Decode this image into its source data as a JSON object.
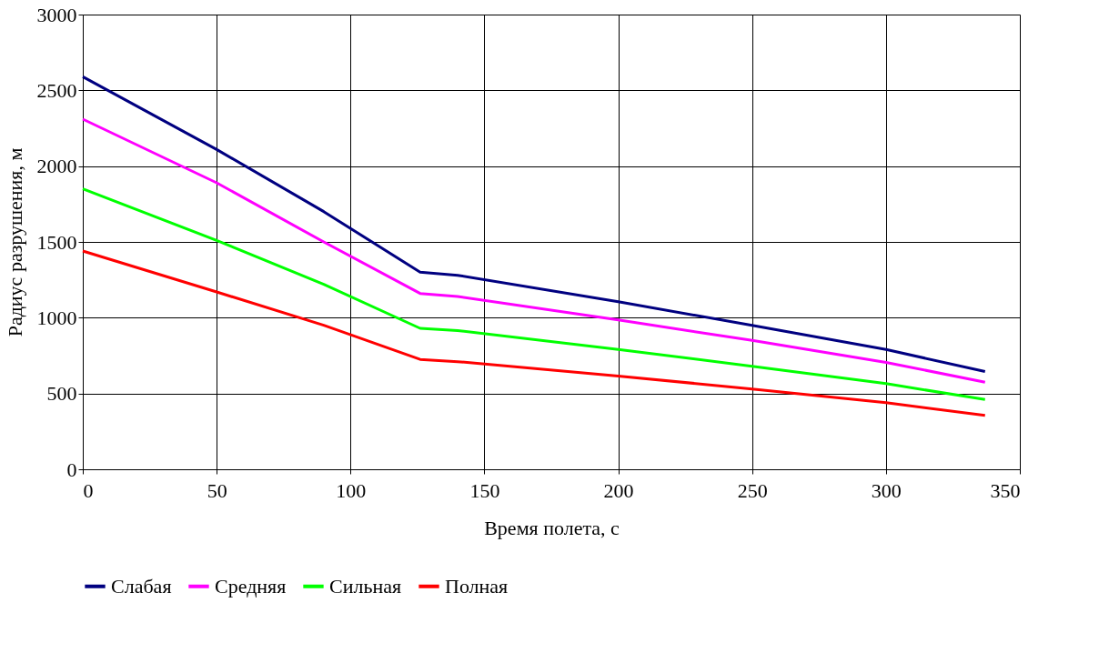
{
  "chart_data": {
    "type": "line",
    "xlabel": "Время полета, с",
    "ylabel": "Радиус разрушения, м",
    "x": [
      0,
      50,
      90,
      126,
      140,
      200,
      250,
      300,
      337
    ],
    "series": [
      {
        "name": "Слабая",
        "color": "#000080",
        "values": [
          2590,
          2110,
          1700,
          1300,
          1280,
          1105,
          950,
          790,
          645
        ]
      },
      {
        "name": "Средняя",
        "color": "#ff00ff",
        "values": [
          2310,
          1890,
          1500,
          1160,
          1140,
          985,
          850,
          705,
          575
        ]
      },
      {
        "name": "Сильная",
        "color": "#00ff00",
        "values": [
          1850,
          1510,
          1220,
          930,
          915,
          790,
          680,
          565,
          460
        ]
      },
      {
        "name": "Полная",
        "color": "#ff0000",
        "values": [
          1440,
          1170,
          950,
          725,
          710,
          615,
          530,
          440,
          355
        ]
      }
    ],
    "xlim": [
      0,
      350
    ],
    "xticks": [
      0,
      50,
      100,
      150,
      200,
      250,
      300,
      350
    ],
    "ylim": [
      0,
      3000
    ],
    "yticks": [
      0,
      500,
      1000,
      1500,
      2000,
      2500,
      3000
    ],
    "grid": true,
    "legend": "bottom",
    "marker": "none",
    "line_style": "solid"
  }
}
